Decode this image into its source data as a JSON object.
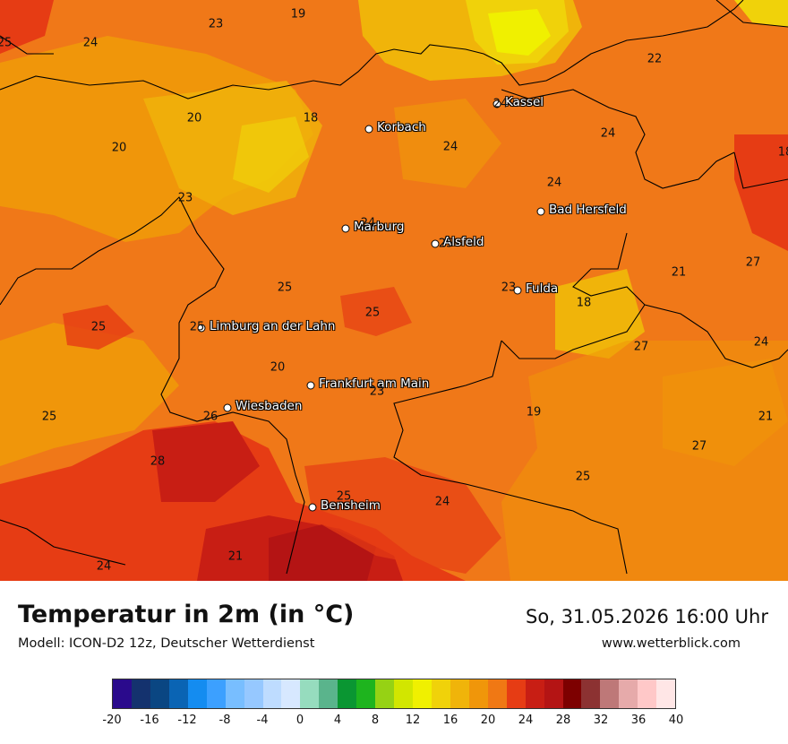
{
  "title": "Temperatur in 2m (in °C)",
  "model": "Modell: ICON-D2 12z, Deutscher Wetterdienst",
  "datetime": "So, 31.05.2026 16:00 Uhr",
  "website": "www.wetterblick.com",
  "cities": [
    {
      "id": "kassel",
      "name": "Kassel"
    },
    {
      "id": "korbach",
      "name": "Korbach"
    },
    {
      "id": "bad-hersfeld",
      "name": "Bad Hersfeld"
    },
    {
      "id": "marburg",
      "name": "Marburg"
    },
    {
      "id": "alsfeld",
      "name": "Alsfeld"
    },
    {
      "id": "fulda",
      "name": "Fulda"
    },
    {
      "id": "limburg",
      "name": "Limburg an der Lahn"
    },
    {
      "id": "frankfurt",
      "name": "Frankfurt am Main"
    },
    {
      "id": "wiesbaden",
      "name": "Wiesbaden"
    },
    {
      "id": "bensheim",
      "name": "Bensheim"
    }
  ],
  "map_values": [
    "19",
    "23",
    "25",
    "24",
    "22",
    "20",
    "18",
    "24",
    "24",
    "20",
    "23",
    "24",
    "24",
    "24",
    "18",
    "25",
    "25",
    "25",
    "18",
    "21",
    "27",
    "25",
    "20",
    "23",
    "25",
    "23",
    "19",
    "27",
    "24",
    "21",
    "25",
    "26",
    "28",
    "27",
    "25",
    "25",
    "24",
    "24",
    "21"
  ],
  "legend": {
    "ticks": [
      "-20",
      "-16",
      "-12",
      "-8",
      "-4",
      "0",
      "4",
      "8",
      "12",
      "16",
      "20",
      "24",
      "28",
      "32",
      "36",
      "40"
    ],
    "colors": [
      "#2a0a8c",
      "#14326e",
      "#0a4682",
      "#0a64b4",
      "#148cf0",
      "#3ca0ff",
      "#78beff",
      "#96c8ff",
      "#bedcff",
      "#d7e8ff",
      "#96dcbe",
      "#5ab48c",
      "#0a9632",
      "#1eb41e",
      "#96d214",
      "#d2e600",
      "#f0f000",
      "#f0d20a",
      "#f0b40a",
      "#f0960a",
      "#f07814",
      "#e63c14",
      "#c81e14",
      "#b41414",
      "#7d0000",
      "#8c3232",
      "#be7878",
      "#e6aaaa",
      "#ffc8c8",
      "#ffe6e6"
    ]
  }
}
